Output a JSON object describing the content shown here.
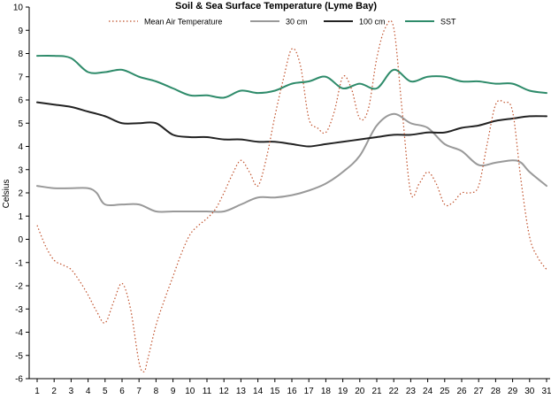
{
  "chart_data": {
    "type": "line",
    "title": "Soil & Sea Surface Temperature (Lyme Bay)",
    "xlabel": "",
    "ylabel": "Celsius",
    "xlim": [
      1,
      31
    ],
    "ylim": [
      -6,
      10
    ],
    "x_ticks": [
      1,
      2,
      3,
      4,
      5,
      6,
      7,
      8,
      9,
      10,
      11,
      12,
      13,
      14,
      15,
      16,
      17,
      18,
      19,
      20,
      21,
      22,
      23,
      24,
      25,
      26,
      27,
      28,
      29,
      30,
      31
    ],
    "y_ticks": [
      -6,
      -5,
      -4,
      -3,
      -2,
      -1,
      0,
      1,
      2,
      3,
      4,
      5,
      6,
      7,
      8,
      9,
      10
    ],
    "grid": false,
    "legend_position": "top",
    "series": [
      {
        "name": "Mean Air Temperature",
        "color": "#c0502a",
        "style": "dotted",
        "points": [
          [
            1,
            0.6
          ],
          [
            1.5,
            -0.3
          ],
          [
            2,
            -0.9
          ],
          [
            2.5,
            -1.1
          ],
          [
            3,
            -1.3
          ],
          [
            3.5,
            -1.8
          ],
          [
            4,
            -2.4
          ],
          [
            4.5,
            -3.1
          ],
          [
            5,
            -3.6
          ],
          [
            5.5,
            -2.7
          ],
          [
            6,
            -1.9
          ],
          [
            6.5,
            -3.0
          ],
          [
            7,
            -5.3
          ],
          [
            7.3,
            -5.7
          ],
          [
            7.5,
            -5.2
          ],
          [
            8,
            -3.7
          ],
          [
            8.5,
            -2.6
          ],
          [
            9,
            -1.6
          ],
          [
            9.5,
            -0.6
          ],
          [
            10,
            0.2
          ],
          [
            10.5,
            0.6
          ],
          [
            11,
            0.9
          ],
          [
            11.5,
            1.3
          ],
          [
            12,
            2.0
          ],
          [
            12.5,
            2.8
          ],
          [
            13,
            3.4
          ],
          [
            13.5,
            2.9
          ],
          [
            14,
            2.3
          ],
          [
            14.5,
            3.5
          ],
          [
            15,
            5.3
          ],
          [
            15.5,
            6.9
          ],
          [
            16,
            8.2
          ],
          [
            16.5,
            7.5
          ],
          [
            17,
            5.2
          ],
          [
            17.5,
            4.8
          ],
          [
            18,
            4.6
          ],
          [
            18.5,
            5.5
          ],
          [
            19,
            7.0
          ],
          [
            19.5,
            6.5
          ],
          [
            20,
            5.2
          ],
          [
            20.5,
            5.6
          ],
          [
            21,
            7.8
          ],
          [
            21.5,
            9.1
          ],
          [
            22,
            9.1
          ],
          [
            22.5,
            5.5
          ],
          [
            23,
            2.0
          ],
          [
            23.5,
            2.4
          ],
          [
            24,
            2.9
          ],
          [
            24.5,
            2.4
          ],
          [
            25,
            1.5
          ],
          [
            25.5,
            1.6
          ],
          [
            26,
            2.0
          ],
          [
            26.5,
            2.0
          ],
          [
            27,
            2.3
          ],
          [
            27.5,
            4.1
          ],
          [
            28,
            5.8
          ],
          [
            28.5,
            5.9
          ],
          [
            29,
            5.5
          ],
          [
            29.5,
            2.5
          ],
          [
            30,
            0.1
          ],
          [
            30.5,
            -0.8
          ],
          [
            31,
            -1.3
          ]
        ]
      },
      {
        "name": "30 cm",
        "color": "#999999",
        "style": "solid",
        "points": [
          [
            1,
            2.3
          ],
          [
            2,
            2.2
          ],
          [
            3,
            2.2
          ],
          [
            4,
            2.2
          ],
          [
            4.5,
            2.0
          ],
          [
            5,
            1.5
          ],
          [
            6,
            1.5
          ],
          [
            7,
            1.5
          ],
          [
            8,
            1.2
          ],
          [
            9,
            1.2
          ],
          [
            10,
            1.2
          ],
          [
            11,
            1.2
          ],
          [
            12,
            1.2
          ],
          [
            13,
            1.5
          ],
          [
            14,
            1.8
          ],
          [
            15,
            1.8
          ],
          [
            16,
            1.9
          ],
          [
            17,
            2.1
          ],
          [
            18,
            2.4
          ],
          [
            19,
            2.9
          ],
          [
            20,
            3.6
          ],
          [
            21,
            4.9
          ],
          [
            22,
            5.4
          ],
          [
            23,
            5.0
          ],
          [
            24,
            4.8
          ],
          [
            25,
            4.1
          ],
          [
            26,
            3.8
          ],
          [
            27,
            3.2
          ],
          [
            28,
            3.3
          ],
          [
            29,
            3.4
          ],
          [
            29.5,
            3.3
          ],
          [
            30,
            2.9
          ],
          [
            31,
            2.3
          ]
        ]
      },
      {
        "name": "100 cm",
        "color": "#222222",
        "style": "solid",
        "points": [
          [
            1,
            5.9
          ],
          [
            2,
            5.8
          ],
          [
            3,
            5.7
          ],
          [
            4,
            5.5
          ],
          [
            5,
            5.3
          ],
          [
            6,
            5.0
          ],
          [
            7,
            5.0
          ],
          [
            8,
            5.0
          ],
          [
            9,
            4.5
          ],
          [
            10,
            4.4
          ],
          [
            11,
            4.4
          ],
          [
            12,
            4.3
          ],
          [
            13,
            4.3
          ],
          [
            14,
            4.2
          ],
          [
            15,
            4.2
          ],
          [
            16,
            4.1
          ],
          [
            17,
            4.0
          ],
          [
            18,
            4.1
          ],
          [
            19,
            4.2
          ],
          [
            20,
            4.3
          ],
          [
            21,
            4.4
          ],
          [
            22,
            4.5
          ],
          [
            23,
            4.5
          ],
          [
            24,
            4.6
          ],
          [
            25,
            4.6
          ],
          [
            26,
            4.8
          ],
          [
            27,
            4.9
          ],
          [
            28,
            5.1
          ],
          [
            29,
            5.2
          ],
          [
            30,
            5.3
          ],
          [
            31,
            5.3
          ]
        ]
      },
      {
        "name": "SST",
        "color": "#2e8b6a",
        "style": "solid",
        "points": [
          [
            1,
            7.9
          ],
          [
            2,
            7.9
          ],
          [
            3,
            7.8
          ],
          [
            4,
            7.2
          ],
          [
            5,
            7.2
          ],
          [
            6,
            7.3
          ],
          [
            7,
            7.0
          ],
          [
            8,
            6.8
          ],
          [
            9,
            6.5
          ],
          [
            10,
            6.2
          ],
          [
            11,
            6.2
          ],
          [
            12,
            6.1
          ],
          [
            13,
            6.4
          ],
          [
            14,
            6.3
          ],
          [
            15,
            6.4
          ],
          [
            16,
            6.7
          ],
          [
            17,
            6.8
          ],
          [
            18,
            7.0
          ],
          [
            19,
            6.5
          ],
          [
            20,
            6.7
          ],
          [
            21,
            6.5
          ],
          [
            22,
            7.3
          ],
          [
            23,
            6.8
          ],
          [
            24,
            7.0
          ],
          [
            25,
            7.0
          ],
          [
            26,
            6.8
          ],
          [
            27,
            6.8
          ],
          [
            28,
            6.7
          ],
          [
            29,
            6.7
          ],
          [
            30,
            6.4
          ],
          [
            31,
            6.3
          ]
        ]
      }
    ]
  }
}
